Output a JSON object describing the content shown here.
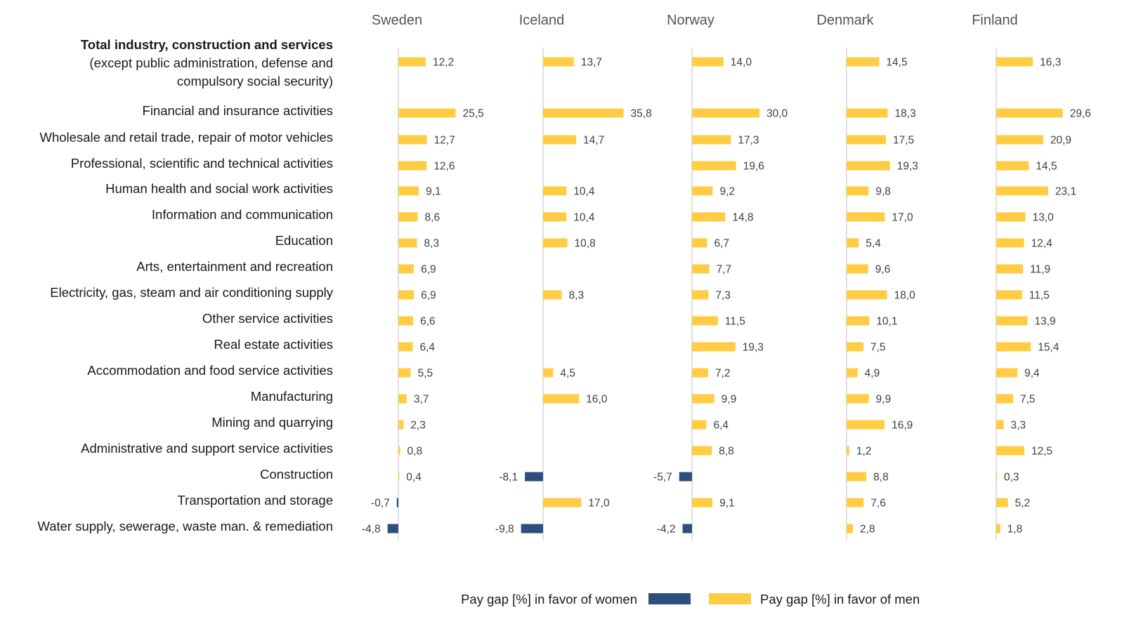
{
  "chart_data": {
    "type": "bar",
    "orientation": "horizontal",
    "panels": [
      "Sweden",
      "Iceland",
      "Norway",
      "Denmark",
      "Finland"
    ],
    "categories": [
      [
        "Total industry, construction and services",
        "(except public administration, defense and",
        "compulsory social security)"
      ],
      [
        "Financial and insurance activities"
      ],
      [
        "Wholesale and retail trade, repair of motor vehicles"
      ],
      [
        "Professional, scientific and technical activities"
      ],
      [
        "Human health and social work activities"
      ],
      [
        "Information and communication"
      ],
      [
        "Education"
      ],
      [
        "Arts, entertainment and recreation"
      ],
      [
        "Electricity, gas, steam and air conditioning supply"
      ],
      [
        "Other service activities"
      ],
      [
        "Real estate activities"
      ],
      [
        "Accommodation and food service activities"
      ],
      [
        "Manufacturing"
      ],
      [
        "Mining and quarrying"
      ],
      [
        "Administrative and support service activities"
      ],
      [
        "Construction"
      ],
      [
        "Transportation and storage"
      ],
      [
        "Water supply, sewerage, waste man. & remediation"
      ]
    ],
    "series": [
      {
        "panel": "Sweden",
        "values": [
          12.2,
          25.5,
          12.7,
          12.6,
          9.1,
          8.6,
          8.3,
          6.9,
          6.9,
          6.6,
          6.4,
          5.5,
          3.7,
          2.3,
          0.8,
          0.4,
          -0.7,
          -4.8
        ]
      },
      {
        "panel": "Iceland",
        "values": [
          13.7,
          35.8,
          14.7,
          null,
          10.4,
          10.4,
          10.8,
          null,
          8.3,
          null,
          null,
          4.5,
          16.0,
          null,
          null,
          -8.1,
          17.0,
          -9.8
        ]
      },
      {
        "panel": "Norway",
        "values": [
          14.0,
          30.0,
          17.3,
          19.6,
          9.2,
          14.8,
          6.7,
          7.7,
          7.3,
          11.5,
          19.3,
          7.2,
          9.9,
          6.4,
          8.8,
          -5.7,
          9.1,
          -4.2
        ]
      },
      {
        "panel": "Denmark",
        "values": [
          14.5,
          18.3,
          17.5,
          19.3,
          9.8,
          17.0,
          5.4,
          9.6,
          18.0,
          10.1,
          7.5,
          4.9,
          9.9,
          16.9,
          1.2,
          8.8,
          7.6,
          2.8
        ]
      },
      {
        "panel": "Finland",
        "values": [
          16.3,
          29.6,
          20.9,
          14.5,
          23.1,
          13.0,
          12.4,
          11.9,
          11.5,
          13.9,
          15.4,
          9.4,
          7.5,
          3.3,
          12.5,
          0.3,
          5.2,
          1.8
        ]
      }
    ],
    "legend": [
      {
        "label": "Pay gap [%] in favor of women",
        "color": "#2E4E7E"
      },
      {
        "label": "Pay gap [%] in favor of men",
        "color": "#FFCC44"
      }
    ],
    "colors": {
      "positive": "#FFCC44",
      "negative": "#2E4E7E",
      "axis": "#d0d0d0"
    },
    "decimal_separator": ",",
    "legend_position": "bottom",
    "grid": false
  }
}
